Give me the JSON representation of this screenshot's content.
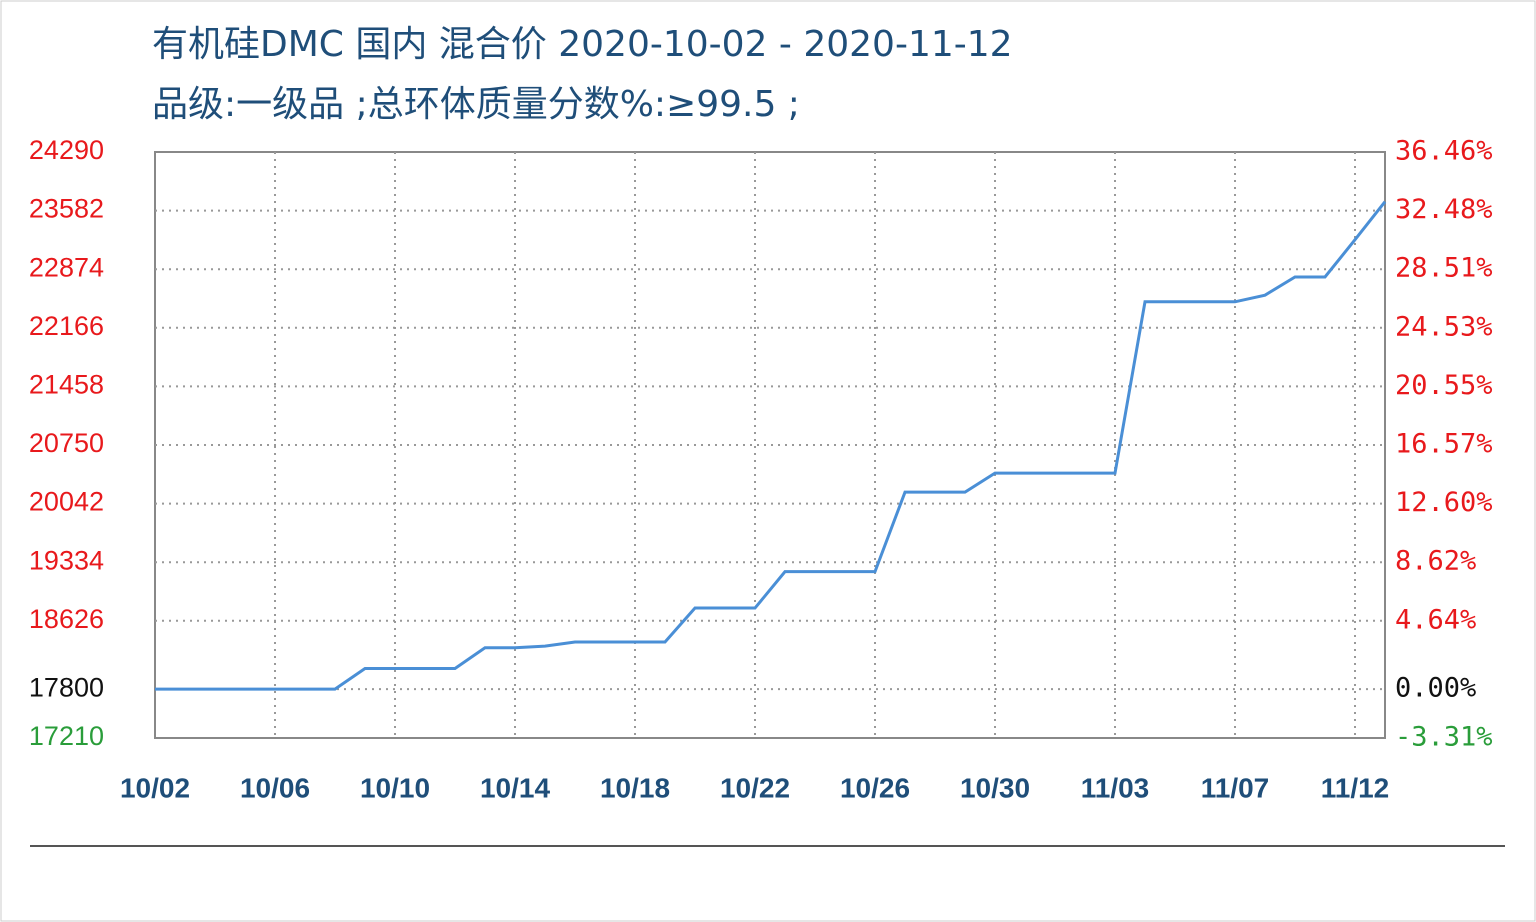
{
  "chart_data": {
    "type": "line",
    "title": "有机硅DMC 国内 混合价 2020-10-02 - 2020-11-12",
    "subtitle": "品级:一级品 ;总环体质量分数%:≥99.5 ;",
    "categories": [
      "10/02",
      null,
      null,
      null,
      "10/06",
      null,
      null,
      null,
      "10/10",
      null,
      null,
      null,
      "10/14",
      null,
      null,
      null,
      "10/18",
      null,
      null,
      null,
      "10/22",
      null,
      null,
      null,
      "10/26",
      null,
      null,
      null,
      "10/30",
      null,
      null,
      null,
      "11/03",
      null,
      null,
      null,
      "11/07",
      null,
      null,
      null,
      "11/12",
      null
    ],
    "series": [
      {
        "color": "#4a8fd6",
        "values": [
          17800,
          17800,
          17800,
          17800,
          17800,
          17800,
          17800,
          18050,
          18050,
          18050,
          18050,
          18300,
          18300,
          18320,
          18370,
          18370,
          18370,
          18370,
          18780,
          18780,
          18780,
          19220,
          19220,
          19220,
          19220,
          20180,
          20180,
          20180,
          20410,
          20410,
          20410,
          20410,
          20410,
          22480,
          22480,
          22480,
          22480,
          22560,
          22780,
          22780,
          23230,
          23690
        ]
      }
    ],
    "ylim": [
      17210,
      24290
    ],
    "yticks": [
      17210,
      17800,
      18626,
      19334,
      20042,
      20750,
      21458,
      22166,
      22874,
      23582,
      24290
    ],
    "ytick_colors": [
      "#2a9d3a",
      "#111111",
      "#e8191c",
      "#e8191c",
      "#e8191c",
      "#e8191c",
      "#e8191c",
      "#e8191c",
      "#e8191c",
      "#e8191c",
      "#e8191c"
    ],
    "y2lim": [
      -3.31,
      36.46
    ],
    "y2ticks": [
      {
        "value": -3.31,
        "label": "-3.31%"
      },
      {
        "value": 0,
        "label": "0.00%"
      },
      {
        "value": 4.64,
        "label": "4.64%"
      },
      {
        "value": 8.62,
        "label": "8.62%"
      },
      {
        "value": 12.6,
        "label": "12.60%"
      },
      {
        "value": 16.57,
        "label": "16.57%"
      },
      {
        "value": 20.55,
        "label": "20.55%"
      },
      {
        "value": 24.53,
        "label": "24.53%"
      },
      {
        "value": 28.51,
        "label": "28.51%"
      },
      {
        "value": 32.48,
        "label": "32.48%"
      },
      {
        "value": 36.46,
        "label": "36.46%"
      }
    ],
    "grid": true
  }
}
